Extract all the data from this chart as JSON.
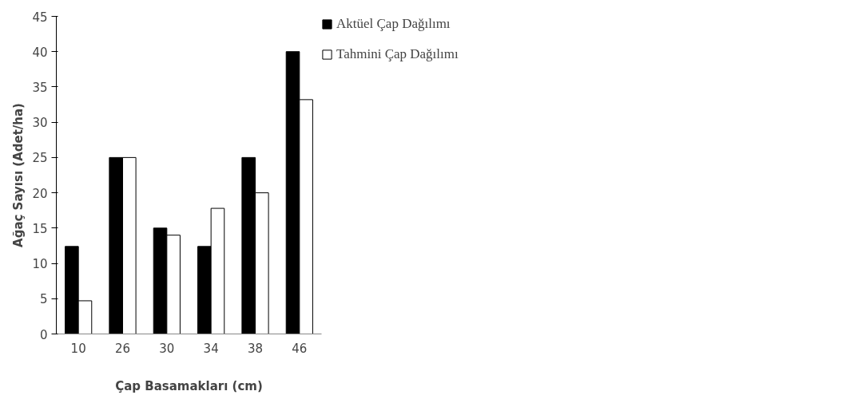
{
  "chart_data": {
    "type": "bar",
    "xlabel": "Çap Basamakları (cm)",
    "ylabel": "Ağaç Sayısı (Adet/ha)",
    "categories": [
      "10",
      "26",
      "30",
      "34",
      "38",
      "46"
    ],
    "series": [
      {
        "name": "Aktüel Çap Dağılımı",
        "color": "#000000",
        "values": [
          12.4,
          25,
          15,
          12.4,
          25,
          40
        ]
      },
      {
        "name": "Tahmini Çap Dağılımı",
        "color": "#ffffff",
        "values": [
          4.7,
          25,
          14,
          17.8,
          20,
          33.2
        ]
      }
    ],
    "ylim": [
      0,
      45
    ],
    "yticks": [
      0,
      5,
      10,
      15,
      20,
      25,
      30,
      35,
      40,
      45
    ],
    "grid": false,
    "legend": "top right"
  }
}
